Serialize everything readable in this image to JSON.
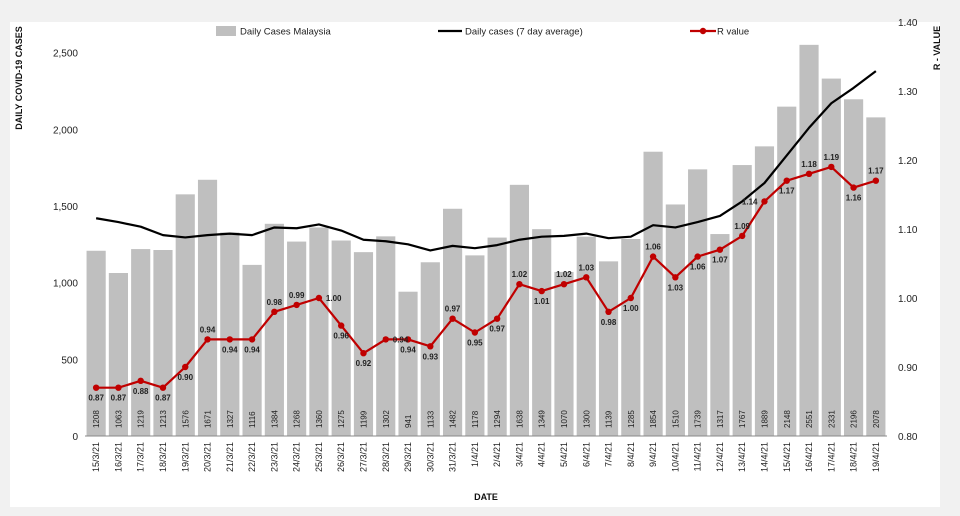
{
  "chart_data": {
    "type": "bar",
    "title": "",
    "xlabel": "DATE",
    "ylabel": "DAILY COVID-19 CASES",
    "y2label": "R - VALUE",
    "ylim": [
      0,
      2700
    ],
    "y2lim": [
      0.8,
      1.4
    ],
    "yticks": [
      "0",
      "500",
      "1,000",
      "1,500",
      "2,000",
      "2,500"
    ],
    "y2ticks": [
      "0.80",
      "0.90",
      "1.00",
      "1.10",
      "1.20",
      "1.30",
      "1.40"
    ],
    "categories": [
      "15/3/21",
      "16/3/21",
      "17/3/21",
      "18/3/21",
      "19/3/21",
      "20/3/21",
      "21/3/21",
      "22/3/21",
      "23/3/21",
      "24/3/21",
      "25/3/21",
      "26/3/21",
      "27/3/21",
      "28/3/21",
      "29/3/21",
      "30/3/21",
      "31/3/21",
      "1/4/21",
      "2/4/21",
      "3/4/21",
      "4/4/21",
      "5/4/21",
      "6/4/21",
      "7/4/21",
      "8/4/21",
      "9/4/21",
      "10/4/21",
      "11/4/21",
      "12/4/21",
      "13/4/21",
      "14/4/21",
      "15/4/21",
      "16/4/21",
      "17/4/21",
      "18/4/21",
      "19/4/21"
    ],
    "series": [
      {
        "name": "Daily Cases Malaysia",
        "type": "bar",
        "color": "#bfbfbf",
        "values": [
          1208,
          1063,
          1219,
          1213,
          1576,
          1671,
          1327,
          1116,
          1384,
          1268,
          1360,
          1275,
          1199,
          1302,
          941,
          1133,
          1482,
          1178,
          1294,
          1638,
          1349,
          1070,
          1300,
          1139,
          1285,
          1854,
          1510,
          1739,
          1317,
          1767,
          1889,
          2148,
          2551,
          2331,
          2196,
          2078
        ],
        "labels": [
          "1208",
          "1063",
          "1219",
          "1213",
          "1576",
          "1671",
          "1327",
          "1116",
          "1384",
          "1268",
          "1360",
          "1275",
          "1199",
          "1302",
          "941",
          "1133",
          "1482",
          "1178",
          "1294",
          "1638",
          "1349",
          "1070",
          "1300",
          "1139",
          "1285",
          "1854",
          "1510",
          "1739",
          "1317",
          "1767",
          "1889",
          "2148",
          "2551",
          "2331",
          "2196",
          "2078"
        ]
      },
      {
        "name": "Daily cases (7 day average)",
        "type": "line",
        "color": "#000000",
        "values": [
          1420,
          1395,
          1365,
          1310,
          1295,
          1310,
          1320,
          1310,
          1360,
          1355,
          1380,
          1340,
          1280,
          1270,
          1250,
          1210,
          1240,
          1225,
          1245,
          1280,
          1300,
          1305,
          1320,
          1290,
          1300,
          1375,
          1360,
          1395,
          1435,
          1530,
          1650,
          1830,
          2010,
          2170,
          2270,
          2380
        ]
      },
      {
        "name": "R value",
        "type": "line",
        "axis": "right",
        "color": "#c00000",
        "values": [
          0.87,
          0.87,
          0.88,
          0.87,
          0.9,
          0.94,
          0.94,
          0.94,
          0.98,
          0.99,
          1.0,
          0.96,
          0.92,
          0.94,
          0.94,
          0.93,
          0.97,
          0.95,
          0.97,
          1.02,
          1.01,
          1.02,
          1.03,
          0.98,
          1.0,
          1.06,
          1.03,
          1.06,
          1.07,
          1.09,
          1.14,
          1.17,
          1.18,
          1.19,
          1.16,
          1.17
        ],
        "labels": [
          "0.87",
          "0.87",
          "0.88",
          "0.87",
          "0.90",
          "0.94",
          "0.94",
          "0.94",
          "0.98",
          "0.99",
          "1.00",
          "0.96",
          "0.92",
          "0.94",
          "0.94",
          "0.93",
          "0.97",
          "0.95",
          "0.97",
          "1.02",
          "1.01",
          "1.02",
          "1.03",
          "0.98",
          "1.00",
          "1.06",
          "1.03",
          "1.06",
          "1.07",
          "1.09",
          "1.14",
          "1.17",
          "1.18",
          "1.19",
          "1.16",
          "1.17"
        ],
        "label_positions": [
          "below",
          "below",
          "below",
          "below",
          "below",
          "above",
          "below",
          "below",
          "above",
          "above",
          "right",
          "below",
          "below",
          "right",
          "below",
          "below",
          "above",
          "below",
          "below",
          "above",
          "below",
          "above",
          "above",
          "below",
          "below",
          "above",
          "below",
          "below",
          "below",
          "above",
          "left",
          "below",
          "above",
          "above",
          "below",
          "above"
        ]
      }
    ],
    "legend": {
      "position": "top",
      "items": [
        "Daily Cases Malaysia",
        "Daily cases (7 day average)",
        "R value"
      ]
    }
  }
}
